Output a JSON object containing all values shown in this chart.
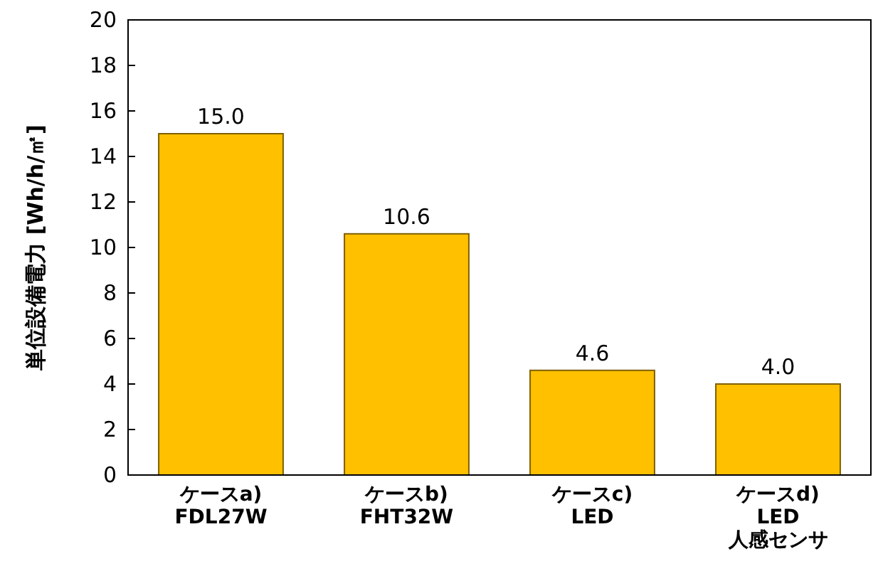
{
  "chart_data": {
    "type": "bar",
    "ylabel": "単位設備電力 [Wh/h/㎡]",
    "categories": [
      "ケースa)\nFDL27W",
      "ケースb)\nFHT32W",
      "ケースc)\nLED",
      "ケースd)\nLED\n人感センサ"
    ],
    "values": [
      15.0,
      10.6,
      4.6,
      4.0
    ],
    "value_labels": [
      "15.0",
      "10.6",
      "4.6",
      "4.0"
    ],
    "color": "#ffc000",
    "ylim": [
      0,
      20
    ],
    "yticks": [
      0,
      2,
      4,
      6,
      8,
      10,
      12,
      14,
      16,
      18,
      20
    ],
    "grid": false
  }
}
